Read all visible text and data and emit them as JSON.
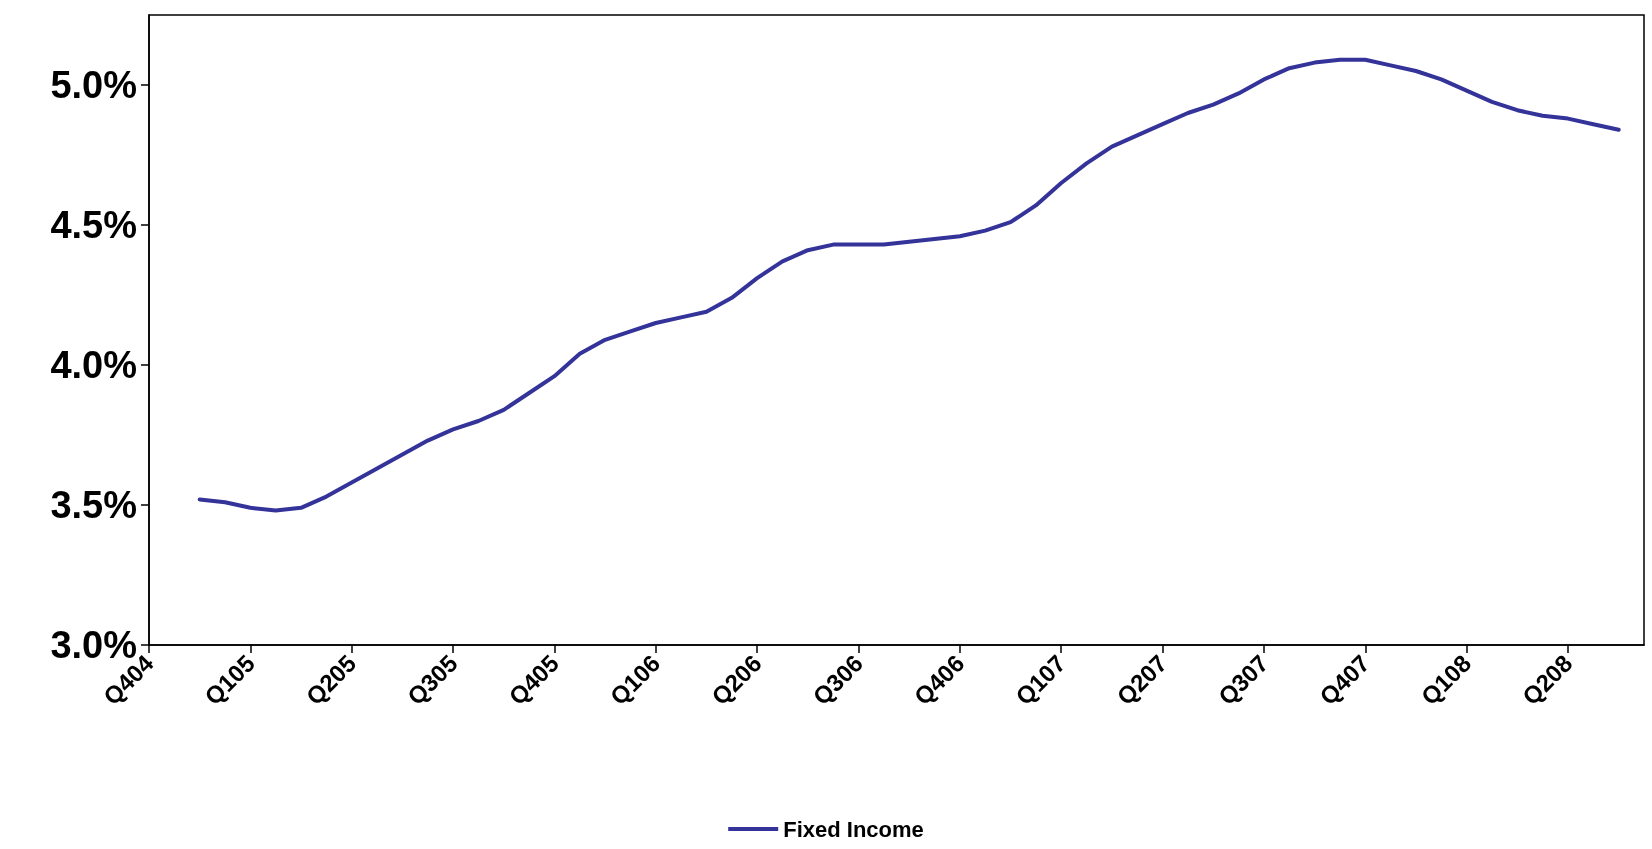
{
  "chart_data": {
    "type": "line",
    "categories": [
      "Q404",
      null,
      null,
      null,
      "Q105",
      null,
      null,
      null,
      "Q205",
      null,
      null,
      null,
      "Q305",
      null,
      null,
      null,
      "Q405",
      null,
      null,
      null,
      "Q106",
      null,
      null,
      null,
      "Q206",
      null,
      null,
      null,
      "Q306",
      null,
      null,
      null,
      "Q406",
      null,
      null,
      null,
      "Q107",
      null,
      null,
      null,
      "Q207",
      null,
      null,
      null,
      "Q307",
      null,
      null,
      null,
      "Q407",
      null,
      null,
      null,
      "Q108",
      null,
      null,
      null,
      "Q208",
      null,
      null,
      null
    ],
    "series": [
      {
        "name": "Fixed Income",
        "color": "#333399",
        "values": [
          null,
          null,
          3.52,
          3.51,
          3.49,
          3.48,
          3.49,
          3.53,
          3.58,
          3.63,
          3.68,
          3.73,
          3.77,
          3.8,
          3.84,
          3.9,
          3.96,
          4.04,
          4.09,
          4.12,
          4.15,
          4.17,
          4.19,
          4.24,
          4.31,
          4.37,
          4.41,
          4.43,
          4.43,
          4.43,
          4.44,
          4.45,
          4.46,
          4.48,
          4.51,
          4.57,
          4.65,
          4.72,
          4.78,
          4.82,
          4.86,
          4.9,
          4.93,
          4.97,
          5.02,
          5.06,
          5.08,
          5.09,
          5.09,
          5.07,
          5.05,
          5.02,
          4.98,
          4.94,
          4.91,
          4.89,
          4.88,
          4.86,
          4.84,
          null
        ]
      }
    ],
    "ylim": [
      3.0,
      5.25
    ],
    "yticks": [
      {
        "value": 3.0,
        "label": "3.0%"
      },
      {
        "value": 3.5,
        "label": "3.5%"
      },
      {
        "value": 4.0,
        "label": "4.0%"
      },
      {
        "value": 4.5,
        "label": "4.5%"
      },
      {
        "value": 5.0,
        "label": "5.0%"
      }
    ],
    "grid": false,
    "legend": "bottom",
    "marker": "none",
    "line_style": "solid"
  }
}
